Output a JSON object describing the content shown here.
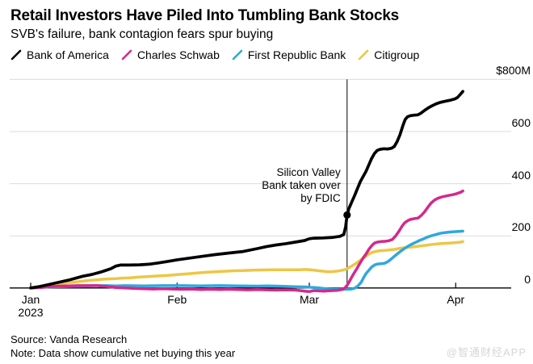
{
  "chart_data": {
    "type": "line",
    "title": "Retail Investors Have Piled Into Tumbling Bank Stocks",
    "subtitle": "SVB's failure, bank contagion fears spur buying",
    "x_unit": "days since Jan 1, 2023",
    "xlim": [
      0,
      91.5
    ],
    "ylim": [
      0,
      800
    ],
    "grid": "horizontal",
    "legend_position": "top",
    "y_ticks": [
      {
        "label": "$800M",
        "value": 800
      },
      {
        "label": "600",
        "value": 600
      },
      {
        "label": "400",
        "value": 400
      },
      {
        "label": "200",
        "value": 200
      },
      {
        "label": "0",
        "value": 0
      }
    ],
    "x_ticks": [
      {
        "label": "Jan",
        "sublabel": "2023",
        "day": 0
      },
      {
        "label": "Feb",
        "day": 31
      },
      {
        "label": "Mar",
        "day": 59
      },
      {
        "label": "Apr",
        "day": 90
      }
    ],
    "annotation": {
      "lines": [
        "Silicon Valley",
        "Bank taken over",
        "by FDIC"
      ],
      "day": 67,
      "value": 280
    },
    "series": [
      {
        "name": "Bank of America",
        "color": "#000000",
        "width": 3.7,
        "points": [
          [
            0,
            0
          ],
          [
            2,
            6
          ],
          [
            5,
            18
          ],
          [
            8,
            30
          ],
          [
            11,
            45
          ],
          [
            13,
            52
          ],
          [
            15,
            62
          ],
          [
            17,
            74
          ],
          [
            18,
            84
          ],
          [
            19,
            88
          ],
          [
            21,
            88
          ],
          [
            23,
            89
          ],
          [
            25,
            91
          ],
          [
            27,
            96
          ],
          [
            29,
            102
          ],
          [
            31,
            108
          ],
          [
            33,
            113
          ],
          [
            35,
            118
          ],
          [
            37,
            123
          ],
          [
            39,
            128
          ],
          [
            42,
            134
          ],
          [
            45,
            140
          ],
          [
            48,
            151
          ],
          [
            50,
            159
          ],
          [
            52,
            165
          ],
          [
            54,
            170
          ],
          [
            56,
            176
          ],
          [
            58,
            182
          ],
          [
            59,
            189
          ],
          [
            60,
            191
          ],
          [
            62,
            192
          ],
          [
            64,
            194
          ],
          [
            65.5,
            198
          ],
          [
            66.3,
            205
          ],
          [
            66.7,
            235
          ],
          [
            67,
            280
          ],
          [
            67.4,
            305
          ],
          [
            68,
            330
          ],
          [
            68.6,
            355
          ],
          [
            69.2,
            382
          ],
          [
            69.8,
            408
          ],
          [
            70.4,
            428
          ],
          [
            71,
            447
          ],
          [
            71.6,
            472
          ],
          [
            72.2,
            497
          ],
          [
            72.8,
            516
          ],
          [
            73.4,
            528
          ],
          [
            74,
            532
          ],
          [
            74.8,
            534
          ],
          [
            75.6,
            533
          ],
          [
            76.4,
            536
          ],
          [
            77,
            543
          ],
          [
            77.6,
            562
          ],
          [
            78.2,
            588
          ],
          [
            78.8,
            622
          ],
          [
            79.3,
            646
          ],
          [
            79.8,
            657
          ],
          [
            80.4,
            661
          ],
          [
            81.2,
            663
          ],
          [
            82,
            664
          ],
          [
            82.6,
            670
          ],
          [
            83.4,
            681
          ],
          [
            84.2,
            691
          ],
          [
            85,
            699
          ],
          [
            85.8,
            706
          ],
          [
            86.6,
            711
          ],
          [
            87.4,
            715
          ],
          [
            88.2,
            718
          ],
          [
            89,
            721
          ],
          [
            89.8,
            725
          ],
          [
            90.4,
            731
          ],
          [
            91,
            743
          ],
          [
            91.5,
            754
          ]
        ]
      },
      {
        "name": "Charles Schwab",
        "color": "#d5288c",
        "width": 3.5,
        "points": [
          [
            0,
            0
          ],
          [
            2,
            2
          ],
          [
            4,
            5
          ],
          [
            6,
            7
          ],
          [
            8,
            8
          ],
          [
            10,
            9
          ],
          [
            12,
            9
          ],
          [
            14,
            9
          ],
          [
            16,
            6
          ],
          [
            18,
            2
          ],
          [
            20,
            0
          ],
          [
            22,
            -2
          ],
          [
            24,
            -3
          ],
          [
            26,
            -4
          ],
          [
            28,
            -3
          ],
          [
            30,
            -4
          ],
          [
            32,
            -5
          ],
          [
            34,
            -4
          ],
          [
            36,
            -6
          ],
          [
            38,
            -5
          ],
          [
            40,
            -6
          ],
          [
            42,
            -5
          ],
          [
            44,
            -6
          ],
          [
            46,
            -7
          ],
          [
            48,
            -6
          ],
          [
            50,
            -7
          ],
          [
            52,
            -8
          ],
          [
            54,
            -7
          ],
          [
            56,
            -8
          ],
          [
            58,
            -12
          ],
          [
            59,
            -14
          ],
          [
            60,
            -10
          ],
          [
            61,
            -11
          ],
          [
            62,
            -12
          ],
          [
            63,
            -11
          ],
          [
            64,
            -10
          ],
          [
            65,
            -9
          ],
          [
            66,
            -6
          ],
          [
            66.5,
            0
          ],
          [
            67,
            10
          ],
          [
            67.5,
            25
          ],
          [
            68,
            42
          ],
          [
            68.5,
            58
          ],
          [
            69,
            72
          ],
          [
            69.5,
            88
          ],
          [
            70,
            103
          ],
          [
            70.5,
            118
          ],
          [
            71,
            130
          ],
          [
            71.6,
            148
          ],
          [
            72.2,
            162
          ],
          [
            72.8,
            172
          ],
          [
            73.4,
            176
          ],
          [
            74.2,
            178
          ],
          [
            75,
            179
          ],
          [
            75.8,
            181
          ],
          [
            76.6,
            186
          ],
          [
            77.3,
            200
          ],
          [
            78,
            218
          ],
          [
            78.6,
            236
          ],
          [
            79.2,
            250
          ],
          [
            79.8,
            258
          ],
          [
            80.4,
            263
          ],
          [
            81.2,
            266
          ],
          [
            82,
            268
          ],
          [
            82.7,
            278
          ],
          [
            83.4,
            292
          ],
          [
            84.1,
            310
          ],
          [
            84.8,
            326
          ],
          [
            85.5,
            337
          ],
          [
            86.2,
            344
          ],
          [
            87,
            349
          ],
          [
            87.8,
            352
          ],
          [
            88.6,
            355
          ],
          [
            89.4,
            358
          ],
          [
            90.2,
            362
          ],
          [
            91,
            367
          ],
          [
            91.5,
            372
          ]
        ]
      },
      {
        "name": "First Republic Bank",
        "color": "#2fa8dc",
        "width": 3.5,
        "points": [
          [
            0,
            0
          ],
          [
            2,
            2
          ],
          [
            4,
            4
          ],
          [
            6,
            5
          ],
          [
            8,
            6
          ],
          [
            10,
            7
          ],
          [
            12,
            8
          ],
          [
            14,
            9
          ],
          [
            16,
            9
          ],
          [
            18,
            8
          ],
          [
            20,
            9
          ],
          [
            24,
            8
          ],
          [
            28,
            9
          ],
          [
            32,
            9
          ],
          [
            36,
            8
          ],
          [
            40,
            9
          ],
          [
            44,
            8
          ],
          [
            48,
            7
          ],
          [
            50,
            8
          ],
          [
            52,
            7
          ],
          [
            54,
            6
          ],
          [
            56,
            5
          ],
          [
            58,
            4
          ],
          [
            60,
            2
          ],
          [
            61,
            0
          ],
          [
            62,
            -2
          ],
          [
            63,
            -4
          ],
          [
            64,
            -5
          ],
          [
            66,
            -5
          ],
          [
            67,
            -5
          ],
          [
            68,
            -4
          ],
          [
            68.7,
            0
          ],
          [
            69.3,
            8
          ],
          [
            70,
            22
          ],
          [
            70.5,
            40
          ],
          [
            71,
            55
          ],
          [
            71.7,
            70
          ],
          [
            72.3,
            82
          ],
          [
            72.9,
            89
          ],
          [
            73.5,
            92
          ],
          [
            74.2,
            93
          ],
          [
            75,
            95
          ],
          [
            75.7,
            102
          ],
          [
            76.4,
            112
          ],
          [
            77.1,
            123
          ],
          [
            77.8,
            133
          ],
          [
            78.5,
            143
          ],
          [
            79.2,
            152
          ],
          [
            79.9,
            160
          ],
          [
            80.7,
            168
          ],
          [
            81.5,
            175
          ],
          [
            82.3,
            182
          ],
          [
            83.1,
            188
          ],
          [
            84,
            195
          ],
          [
            84.8,
            200
          ],
          [
            85.6,
            204
          ],
          [
            86.4,
            208
          ],
          [
            87.2,
            211
          ],
          [
            88,
            213
          ],
          [
            89,
            215
          ],
          [
            90,
            216
          ],
          [
            91.5,
            218
          ]
        ]
      },
      {
        "name": "Citigroup",
        "color": "#eec643",
        "width": 3.5,
        "points": [
          [
            0,
            0
          ],
          [
            1,
            3
          ],
          [
            2,
            6
          ],
          [
            3,
            9
          ],
          [
            4,
            12
          ],
          [
            5,
            14
          ],
          [
            6,
            16
          ],
          [
            7,
            18
          ],
          [
            8,
            20
          ],
          [
            9,
            22
          ],
          [
            10,
            24
          ],
          [
            11,
            26
          ],
          [
            12,
            28
          ],
          [
            13,
            30
          ],
          [
            14,
            31
          ],
          [
            15,
            33
          ],
          [
            16,
            34
          ],
          [
            17,
            35
          ],
          [
            18,
            36
          ],
          [
            19,
            37
          ],
          [
            21,
            39
          ],
          [
            23,
            42
          ],
          [
            25,
            44
          ],
          [
            27,
            46
          ],
          [
            29,
            48
          ],
          [
            31,
            51
          ],
          [
            33,
            54
          ],
          [
            35,
            57
          ],
          [
            37,
            60
          ],
          [
            39,
            62
          ],
          [
            41,
            64
          ],
          [
            43,
            66
          ],
          [
            45,
            67
          ],
          [
            47,
            68
          ],
          [
            49,
            69
          ],
          [
            51,
            70
          ],
          [
            53,
            70
          ],
          [
            55,
            70
          ],
          [
            57,
            70
          ],
          [
            58,
            71
          ],
          [
            59,
            70
          ],
          [
            60,
            68
          ],
          [
            61,
            66
          ],
          [
            62,
            64
          ],
          [
            63,
            62
          ],
          [
            64,
            63
          ],
          [
            65,
            65
          ],
          [
            66,
            68
          ],
          [
            66.8,
            72
          ],
          [
            67.4,
            78
          ],
          [
            68,
            84
          ],
          [
            68.7,
            92
          ],
          [
            69.4,
            101
          ],
          [
            70,
            109
          ],
          [
            70.8,
            119
          ],
          [
            71.6,
            130
          ],
          [
            72.4,
            137
          ],
          [
            73.2,
            141
          ],
          [
            74,
            143
          ],
          [
            75,
            144
          ],
          [
            76,
            146
          ],
          [
            76.8,
            147
          ],
          [
            77.6,
            150
          ],
          [
            78.5,
            153
          ],
          [
            79.5,
            155
          ],
          [
            80.7,
            157
          ],
          [
            82,
            160
          ],
          [
            83.3,
            163
          ],
          [
            84.6,
            166
          ],
          [
            86,
            169
          ],
          [
            87.3,
            171
          ],
          [
            88.6,
            172
          ],
          [
            90,
            174
          ],
          [
            91,
            176
          ],
          [
            91.5,
            178
          ]
        ]
      }
    ]
  },
  "footer": {
    "source": "Source: Vanda Research",
    "note": "Note: Data show cumulative net buying this year"
  },
  "watermark": "@智通财经APP"
}
